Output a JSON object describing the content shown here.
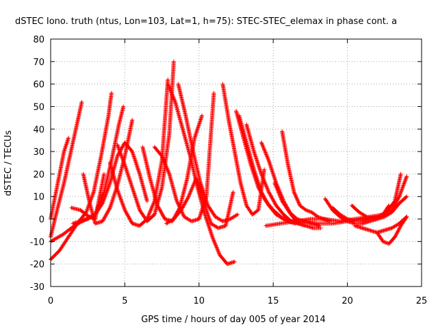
{
  "chart_data": {
    "type": "scatter",
    "title": "dSTEC Iono. truth (ntus, Lon=103, Lat=1, h=75): STEC-STEC_elemax in phase cont. a",
    "xlabel": "GPS time / hours of day 005 of year 2014",
    "ylabel": "dSTEC  / TECUs",
    "xlim": [
      0,
      25
    ],
    "ylim": [
      -30,
      80
    ],
    "xticks": [
      0,
      5,
      10,
      15,
      20,
      25
    ],
    "yticks": [
      -30,
      -20,
      -10,
      0,
      10,
      20,
      30,
      40,
      50,
      60,
      70,
      80
    ],
    "grid": true,
    "marker": "+",
    "color": "#ff0000",
    "series": [
      {
        "x": [
          0.0,
          0.3,
          0.6,
          0.9,
          1.2
        ],
        "y": [
          0,
          10,
          20,
          30,
          36
        ]
      },
      {
        "x": [
          0.0,
          0.4,
          0.9,
          1.5,
          2.1
        ],
        "y": [
          -8,
          3,
          16,
          34,
          52
        ]
      },
      {
        "x": [
          0.0,
          0.6,
          1.2,
          1.8,
          2.4,
          2.9,
          3.4,
          3.9,
          4.1
        ],
        "y": [
          -18,
          -14,
          -8,
          -2,
          3,
          12,
          28,
          46,
          56
        ]
      },
      {
        "x": [
          0.0,
          0.8,
          1.6,
          2.4,
          3.0,
          3.6,
          4.1,
          4.6,
          4.9
        ],
        "y": [
          -10,
          -7,
          -3,
          0,
          2,
          12,
          26,
          42,
          50
        ]
      },
      {
        "x": [
          1.4,
          2.0,
          2.6,
          3.0,
          3.3,
          3.6
        ],
        "y": [
          5,
          4,
          1,
          0,
          10,
          20
        ]
      },
      {
        "x": [
          2.2,
          2.6,
          3.0,
          3.5,
          4.0,
          4.5,
          5.0,
          5.5
        ],
        "y": [
          20,
          8,
          -2,
          -1,
          5,
          15,
          28,
          44
        ]
      },
      {
        "x": [
          1.5,
          2.0,
          2.5,
          3.0,
          3.5,
          4.0,
          4.5,
          5.0,
          5.5,
          6.0,
          6.5
        ],
        "y": [
          -2,
          -1,
          0,
          2,
          7,
          16,
          28,
          34,
          30,
          20,
          8
        ]
      },
      {
        "x": [
          4.0,
          4.5,
          5.0,
          5.5,
          6.0,
          6.5,
          7.0,
          7.5,
          7.9
        ],
        "y": [
          25,
          13,
          4,
          -2,
          -3,
          0,
          8,
          26,
          62
        ]
      },
      {
        "x": [
          4.5,
          5.0,
          5.5,
          6.0,
          6.5,
          7.0,
          7.5,
          8.0,
          8.3
        ],
        "y": [
          33,
          24,
          14,
          4,
          -1,
          2,
          14,
          38,
          70
        ]
      },
      {
        "x": [
          6.2,
          6.7,
          7.2,
          7.7,
          8.2,
          8.7,
          9.2,
          9.7,
          10.2
        ],
        "y": [
          32,
          18,
          6,
          0,
          -1,
          5,
          18,
          36,
          46
        ]
      },
      {
        "x": [
          7.0,
          7.5,
          8.0,
          8.5,
          9.0,
          9.5,
          10.0,
          10.5,
          11.0
        ],
        "y": [
          32,
          28,
          20,
          8,
          1,
          -1,
          0,
          10,
          56
        ]
      },
      {
        "x": [
          7.8,
          8.3,
          8.8,
          9.3,
          9.8,
          10.3,
          10.8,
          11.3,
          11.8,
          12.3
        ],
        "y": [
          -2,
          0,
          4,
          10,
          18,
          8,
          -2,
          -4,
          -3,
          12
        ]
      },
      {
        "x": [
          7.9,
          8.4,
          8.9,
          9.4,
          9.9,
          10.4,
          10.9,
          11.4,
          11.9,
          12.4
        ],
        "y": [
          60,
          52,
          40,
          28,
          14,
          2,
          -8,
          -16,
          -20,
          -19
        ]
      },
      {
        "x": [
          8.6,
          9.1,
          9.6,
          10.1,
          10.6,
          11.1,
          11.6,
          12.1,
          12.6
        ],
        "y": [
          60,
          46,
          30,
          16,
          6,
          1,
          -1,
          0,
          2
        ]
      },
      {
        "x": [
          11.6,
          12.0,
          12.4,
          12.8,
          13.2,
          13.6,
          14.0,
          14.4
        ],
        "y": [
          60,
          44,
          30,
          16,
          6,
          2,
          4,
          22
        ]
      },
      {
        "x": [
          12.5,
          13.0,
          13.5,
          14.0,
          14.5,
          15.0,
          15.5,
          16.0,
          16.5
        ],
        "y": [
          48,
          36,
          24,
          14,
          8,
          4,
          1,
          -1,
          -2
        ]
      },
      {
        "x": [
          12.7,
          13.2,
          13.7,
          14.2,
          14.7,
          15.2,
          15.7,
          16.2,
          16.7
        ],
        "y": [
          46,
          34,
          22,
          12,
          6,
          2,
          0,
          -1,
          -2
        ]
      },
      {
        "x": [
          13.2,
          13.7,
          14.2,
          14.7,
          15.2,
          15.7,
          16.2,
          16.7,
          17.2
        ],
        "y": [
          42,
          30,
          20,
          12,
          6,
          2,
          -1,
          -2,
          -3
        ]
      },
      {
        "x": [
          14.2,
          14.7,
          15.2,
          15.7,
          16.2,
          16.7,
          17.2,
          17.7,
          18.2
        ],
        "y": [
          34,
          26,
          16,
          8,
          2,
          -2,
          -3,
          -4,
          -4
        ]
      },
      {
        "x": [
          15.1,
          15.6,
          16.1,
          16.6,
          17.1,
          17.6,
          18.1
        ],
        "y": [
          16,
          8,
          3,
          0,
          -1,
          -2,
          -3
        ]
      },
      {
        "x": [
          15.6,
          16.0,
          16.4,
          16.8,
          17.2,
          17.6,
          18.0,
          18.4,
          18.8
        ],
        "y": [
          39,
          24,
          12,
          6,
          4,
          3,
          1,
          0,
          -1
        ]
      },
      {
        "x": [
          14.5,
          15.5,
          16.5,
          17.5,
          18.5,
          19.5,
          20.5,
          21.5,
          22.5,
          23.2,
          23.6
        ],
        "y": [
          -3,
          -2,
          -1,
          0,
          0,
          -1,
          0,
          1,
          2,
          8,
          20
        ]
      },
      {
        "x": [
          16.0,
          17.0,
          18.0,
          19.0,
          20.0,
          21.0,
          22.0,
          23.0,
          23.5,
          24.0
        ],
        "y": [
          -1,
          -1,
          -2,
          -2,
          -1,
          0,
          1,
          4,
          10,
          19
        ]
      },
      {
        "x": [
          18.5,
          19.0,
          19.5,
          20.0,
          20.5,
          21.0,
          21.5,
          22.0,
          22.5,
          23.0,
          23.5,
          24.0
        ],
        "y": [
          9,
          4,
          1,
          -1,
          -2,
          -2,
          -1,
          0,
          1,
          3,
          7,
          10
        ]
      },
      {
        "x": [
          19.0,
          19.5,
          20.0,
          20.5,
          21.0,
          21.5
        ],
        "y": [
          5,
          2,
          0,
          -1,
          -1,
          0
        ]
      },
      {
        "x": [
          20.3,
          20.8,
          21.3,
          21.8,
          22.3,
          22.8
        ],
        "y": [
          6,
          3,
          1,
          0,
          1,
          6
        ]
      },
      {
        "x": [
          20.5,
          21.0,
          21.5,
          22.0,
          22.5,
          23.0,
          23.5,
          24.0
        ],
        "y": [
          -3,
          -4,
          -5,
          -6,
          -5,
          -4,
          -2,
          1
        ]
      },
      {
        "x": [
          22.0,
          22.4,
          22.8,
          23.2,
          23.6,
          24.0
        ],
        "y": [
          -6,
          -10,
          -11,
          -8,
          -3,
          1
        ]
      }
    ]
  }
}
